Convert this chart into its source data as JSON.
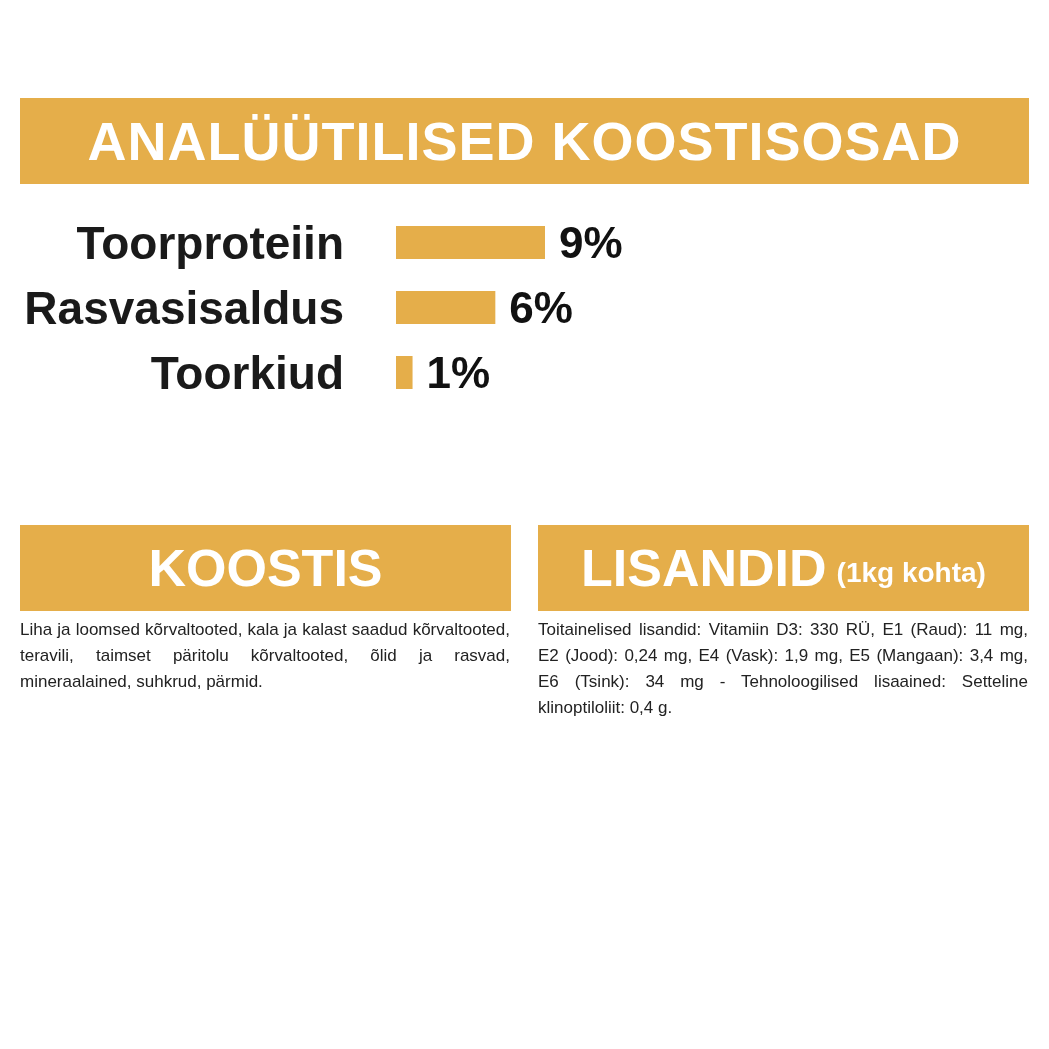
{
  "chart_data": {
    "type": "bar",
    "orientation": "horizontal",
    "title": "ANALÜÜTILISED KOOSTISOSAD",
    "categories": [
      "Toorproteiin",
      "Rasvasisaldus",
      "Toorkiud"
    ],
    "values": [
      9,
      6,
      1
    ],
    "color": "#e5ae4a",
    "value_labels": [
      "9%",
      "6%",
      "1%"
    ],
    "annotations": [
      "KOOSTIS",
      "Liha ja loomsed kõrvaltooted, kala ja kalast saadud kõrvaltooted, teravili, taimset päritolu kõrvaltooted, õlid ja rasvad, mineraalained, suhkrud, pärmid.",
      "LISANDID",
      "(1kg kohta)",
      "Toitainelised lisandid: Vitamiin D3: 330 RÜ, E1 (Raud): 11 mg, E2 (Jood): 0,24 mg, E4 (Vask): 1,9 mg, E5 (Mangaan): 3,4 mg, E6 (Tsink): 34 mg - Tehnoloogilised lisaained: Setteline klinoptiloliit: 0,4 g."
    ]
  }
}
